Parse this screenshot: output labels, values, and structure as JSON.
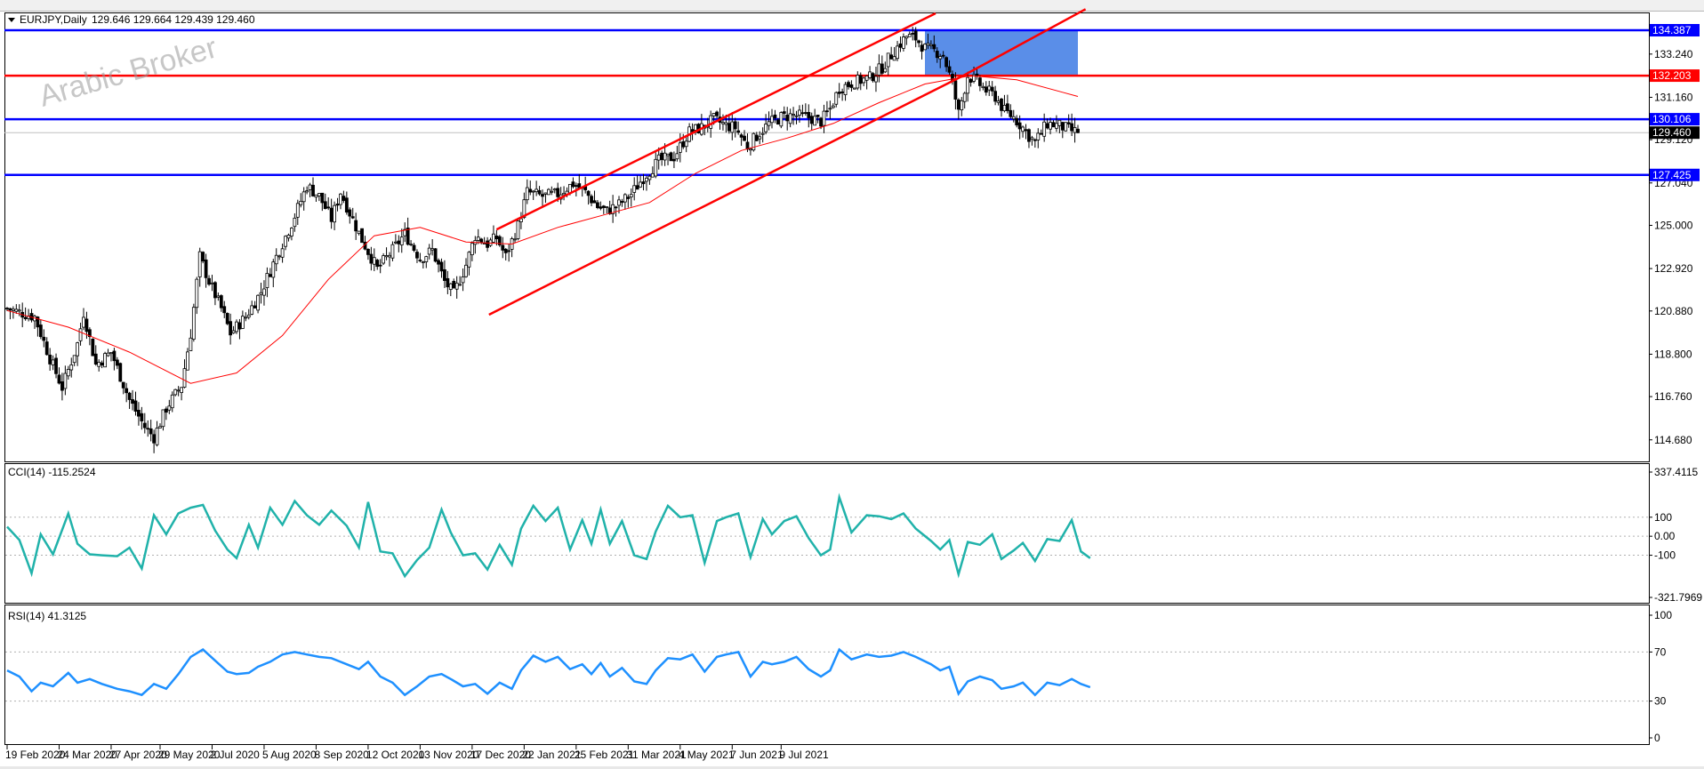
{
  "header": {
    "title": "EURJPY,Daily",
    "ohlc": "129.646 129.664 129.439 129.460"
  },
  "watermark": "Arabic Broker",
  "colors": {
    "bull_candle": "#ffffff",
    "bear_candle": "#000000",
    "ma": "#ff0000",
    "channel": "#ff0000",
    "support_resistance_blue": "#0000ff",
    "support_resistance_red": "#ff0000",
    "zone": "#5a8ee8",
    "cci_line": "#20b2aa",
    "rsi_line": "#1e90ff",
    "last_price_bg": "#000000"
  },
  "chart_data": [
    {
      "type": "candlestick",
      "symbol": "EURJPY",
      "timeframe": "Daily",
      "ylim": [
        113.6,
        135.2
      ],
      "yticks": [
        "133.240",
        "131.160",
        "129.120",
        "127.040",
        "125.000",
        "122.920",
        "120.880",
        "118.800",
        "116.760",
        "114.680"
      ],
      "xticks": [
        "19 Feb 2020",
        "24 Mar 2020",
        "27 Apr 2020",
        "29 May 2020",
        "2 Jul 2020",
        "5 Aug 2020",
        "8 Sep 2020",
        "12 Oct 2020",
        "13 Nov 2020",
        "17 Dec 2020",
        "22 Jan 2021",
        "25 Feb 2021",
        "31 Mar 2021",
        "4 May 2021",
        "7 Jun 2021",
        "9 Jul 2021"
      ],
      "close_path": [
        [
          0,
          121.0
        ],
        [
          18,
          120.6
        ],
        [
          28,
          118.6
        ],
        [
          36,
          117.2
        ],
        [
          46,
          119.3
        ],
        [
          50,
          120.8
        ],
        [
          58,
          118.3
        ],
        [
          68,
          118.9
        ],
        [
          80,
          116.6
        ],
        [
          90,
          115.3
        ],
        [
          96,
          114.8
        ],
        [
          104,
          116.2
        ],
        [
          114,
          117.3
        ],
        [
          120,
          119.8
        ],
        [
          126,
          123.5
        ],
        [
          132,
          122.3
        ],
        [
          140,
          121.0
        ],
        [
          146,
          119.8
        ],
        [
          156,
          120.6
        ],
        [
          166,
          121.8
        ],
        [
          176,
          123.5
        ],
        [
          186,
          125.1
        ],
        [
          196,
          126.9
        ],
        [
          204,
          126.4
        ],
        [
          212,
          125.3
        ],
        [
          218,
          126.6
        ],
        [
          224,
          125.6
        ],
        [
          232,
          124.3
        ],
        [
          242,
          122.9
        ],
        [
          252,
          123.8
        ],
        [
          260,
          124.6
        ],
        [
          270,
          123.4
        ],
        [
          278,
          123.8
        ],
        [
          286,
          122.3
        ],
        [
          292,
          121.7
        ],
        [
          300,
          123.1
        ],
        [
          306,
          124.5
        ],
        [
          314,
          124.1
        ],
        [
          320,
          124.4
        ],
        [
          326,
          123.5
        ],
        [
          334,
          125.0
        ],
        [
          340,
          126.6
        ],
        [
          350,
          126.4
        ],
        [
          360,
          126.5
        ],
        [
          370,
          127.0
        ],
        [
          378,
          126.6
        ],
        [
          386,
          125.9
        ],
        [
          392,
          125.7
        ],
        [
          400,
          126.0
        ],
        [
          408,
          126.5
        ],
        [
          416,
          127.3
        ],
        [
          426,
          128.1
        ],
        [
          436,
          128.3
        ],
        [
          446,
          129.5
        ],
        [
          454,
          129.7
        ],
        [
          462,
          130.1
        ],
        [
          470,
          129.8
        ],
        [
          476,
          129.7
        ],
        [
          484,
          128.8
        ],
        [
          490,
          129.3
        ],
        [
          498,
          129.9
        ],
        [
          506,
          130.2
        ],
        [
          514,
          130.3
        ],
        [
          524,
          130.2
        ],
        [
          532,
          130.0
        ],
        [
          538,
          130.6
        ],
        [
          544,
          131.6
        ],
        [
          554,
          131.9
        ],
        [
          564,
          132.1
        ],
        [
          572,
          132.6
        ],
        [
          580,
          133.4
        ],
        [
          588,
          134.1
        ],
        [
          594,
          134.0
        ],
        [
          600,
          133.5
        ],
        [
          606,
          133.4
        ],
        [
          612,
          133.2
        ],
        [
          618,
          131.8
        ],
        [
          622,
          130.4
        ],
        [
          628,
          132.2
        ],
        [
          634,
          131.9
        ],
        [
          640,
          131.5
        ],
        [
          646,
          131.2
        ],
        [
          652,
          130.5
        ],
        [
          658,
          130.2
        ],
        [
          664,
          129.7
        ],
        [
          668,
          129.3
        ],
        [
          672,
          129.0
        ],
        [
          680,
          129.9
        ],
        [
          688,
          129.8
        ],
        [
          694,
          129.6
        ],
        [
          700,
          129.46
        ]
      ],
      "moving_average": [
        [
          0,
          120.9
        ],
        [
          40,
          120.1
        ],
        [
          80,
          118.9
        ],
        [
          120,
          117.4
        ],
        [
          150,
          117.9
        ],
        [
          180,
          119.7
        ],
        [
          210,
          122.4
        ],
        [
          240,
          124.5
        ],
        [
          270,
          124.9
        ],
        [
          300,
          124.2
        ],
        [
          330,
          124.1
        ],
        [
          360,
          124.9
        ],
        [
          390,
          125.5
        ],
        [
          420,
          126.1
        ],
        [
          450,
          127.5
        ],
        [
          480,
          128.6
        ],
        [
          510,
          129.2
        ],
        [
          540,
          129.9
        ],
        [
          570,
          130.9
        ],
        [
          600,
          131.8
        ],
        [
          630,
          132.2
        ],
        [
          660,
          132.0
        ],
        [
          690,
          131.4
        ],
        [
          700,
          131.2
        ]
      ],
      "horizontal_lines": [
        {
          "price": 134.387,
          "label": "134.387",
          "color": "#0000ff"
        },
        {
          "price": 132.203,
          "label": "132.203",
          "color": "#ff0000"
        },
        {
          "price": 130.106,
          "label": "130.106",
          "color": "#0000ff"
        },
        {
          "price": 127.425,
          "label": "127.425",
          "color": "#0000ff"
        }
      ],
      "last_price": {
        "price": 129.46,
        "label": "129.460"
      },
      "channel": {
        "lower": [
          [
            315,
            120.7
          ],
          [
            625,
            132.2
          ],
          [
            705,
            135.4
          ]
        ],
        "upper": [
          [
            320,
            124.8
          ],
          [
            607,
            135.2
          ]
        ]
      },
      "zone": {
        "from_day": 600,
        "to_day": 700,
        "low": 132.203,
        "high": 134.387
      }
    },
    {
      "type": "line",
      "name": "CCI(14)",
      "label": "CCI(14) -115.2524",
      "ylim": [
        -321.7969,
        337.4115
      ],
      "ytick_labels": [
        "337.4115",
        "100",
        "0.00",
        "-100",
        "-321.7969"
      ],
      "levels": [
        100,
        0,
        -100
      ],
      "path": [
        [
          0,
          50
        ],
        [
          8,
          -20
        ],
        [
          16,
          -195
        ],
        [
          22,
          10
        ],
        [
          30,
          -95
        ],
        [
          40,
          120
        ],
        [
          46,
          -40
        ],
        [
          54,
          -95
        ],
        [
          62,
          -100
        ],
        [
          72,
          -105
        ],
        [
          80,
          -60
        ],
        [
          88,
          -170
        ],
        [
          96,
          110
        ],
        [
          104,
          10
        ],
        [
          112,
          120
        ],
        [
          120,
          150
        ],
        [
          128,
          165
        ],
        [
          136,
          30
        ],
        [
          144,
          -70
        ],
        [
          150,
          -115
        ],
        [
          158,
          60
        ],
        [
          164,
          -60
        ],
        [
          172,
          150
        ],
        [
          180,
          60
        ],
        [
          188,
          185
        ],
        [
          196,
          110
        ],
        [
          204,
          60
        ],
        [
          212,
          135
        ],
        [
          222,
          55
        ],
        [
          230,
          -60
        ],
        [
          236,
          180
        ],
        [
          244,
          -80
        ],
        [
          252,
          -90
        ],
        [
          260,
          -210
        ],
        [
          268,
          -125
        ],
        [
          276,
          -60
        ],
        [
          284,
          140
        ],
        [
          290,
          20
        ],
        [
          298,
          -100
        ],
        [
          306,
          -90
        ],
        [
          314,
          -175
        ],
        [
          322,
          -45
        ],
        [
          330,
          -150
        ],
        [
          336,
          40
        ],
        [
          344,
          160
        ],
        [
          352,
          80
        ],
        [
          360,
          150
        ],
        [
          368,
          -70
        ],
        [
          376,
          85
        ],
        [
          382,
          -40
        ],
        [
          388,
          140
        ],
        [
          394,
          -40
        ],
        [
          402,
          80
        ],
        [
          410,
          -100
        ],
        [
          418,
          -120
        ],
        [
          424,
          25
        ],
        [
          432,
          160
        ],
        [
          440,
          100
        ],
        [
          448,
          110
        ],
        [
          456,
          -140
        ],
        [
          464,
          80
        ],
        [
          470,
          100
        ],
        [
          478,
          120
        ],
        [
          486,
          -110
        ],
        [
          494,
          90
        ],
        [
          500,
          10
        ],
        [
          508,
          80
        ],
        [
          516,
          105
        ],
        [
          524,
          -10
        ],
        [
          532,
          -100
        ],
        [
          538,
          -70
        ],
        [
          544,
          205
        ],
        [
          552,
          20
        ],
        [
          562,
          110
        ],
        [
          570,
          105
        ],
        [
          578,
          90
        ],
        [
          586,
          120
        ],
        [
          594,
          40
        ],
        [
          604,
          -25
        ],
        [
          610,
          -70
        ],
        [
          616,
          -20
        ],
        [
          622,
          -200
        ],
        [
          628,
          -30
        ],
        [
          636,
          -45
        ],
        [
          644,
          10
        ],
        [
          650,
          -120
        ],
        [
          658,
          -75
        ],
        [
          664,
          -35
        ],
        [
          672,
          -130
        ],
        [
          680,
          -15
        ],
        [
          688,
          -25
        ],
        [
          696,
          85
        ],
        [
          702,
          -80
        ],
        [
          708,
          -115
        ]
      ]
    },
    {
      "type": "line",
      "name": "RSI(14)",
      "label": "RSI(14) 41.3125",
      "ylim": [
        0,
        100
      ],
      "ytick_labels": [
        "100",
        "70",
        "30",
        "0"
      ],
      "levels": [
        70,
        30
      ],
      "path": [
        [
          0,
          55
        ],
        [
          8,
          50
        ],
        [
          16,
          38
        ],
        [
          22,
          45
        ],
        [
          30,
          42
        ],
        [
          40,
          53
        ],
        [
          46,
          45
        ],
        [
          54,
          48
        ],
        [
          62,
          44
        ],
        [
          72,
          40
        ],
        [
          80,
          38
        ],
        [
          88,
          35
        ],
        [
          96,
          44
        ],
        [
          104,
          40
        ],
        [
          112,
          52
        ],
        [
          120,
          66
        ],
        [
          128,
          72
        ],
        [
          136,
          63
        ],
        [
          144,
          54
        ],
        [
          150,
          52
        ],
        [
          158,
          53
        ],
        [
          164,
          58
        ],
        [
          172,
          62
        ],
        [
          180,
          68
        ],
        [
          188,
          70
        ],
        [
          196,
          68
        ],
        [
          204,
          66
        ],
        [
          212,
          65
        ],
        [
          222,
          60
        ],
        [
          230,
          56
        ],
        [
          236,
          62
        ],
        [
          244,
          50
        ],
        [
          252,
          45
        ],
        [
          260,
          35
        ],
        [
          268,
          42
        ],
        [
          276,
          50
        ],
        [
          284,
          52
        ],
        [
          290,
          48
        ],
        [
          298,
          42
        ],
        [
          306,
          44
        ],
        [
          314,
          36
        ],
        [
          322,
          45
        ],
        [
          330,
          40
        ],
        [
          336,
          55
        ],
        [
          344,
          67
        ],
        [
          352,
          62
        ],
        [
          360,
          66
        ],
        [
          368,
          56
        ],
        [
          376,
          60
        ],
        [
          382,
          52
        ],
        [
          388,
          61
        ],
        [
          394,
          50
        ],
        [
          402,
          57
        ],
        [
          410,
          46
        ],
        [
          418,
          44
        ],
        [
          424,
          55
        ],
        [
          432,
          65
        ],
        [
          440,
          64
        ],
        [
          448,
          68
        ],
        [
          456,
          54
        ],
        [
          464,
          66
        ],
        [
          470,
          68
        ],
        [
          478,
          70
        ],
        [
          486,
          50
        ],
        [
          494,
          62
        ],
        [
          500,
          60
        ],
        [
          508,
          62
        ],
        [
          516,
          66
        ],
        [
          524,
          56
        ],
        [
          532,
          50
        ],
        [
          538,
          55
        ],
        [
          544,
          72
        ],
        [
          552,
          64
        ],
        [
          562,
          68
        ],
        [
          570,
          66
        ],
        [
          578,
          67
        ],
        [
          586,
          70
        ],
        [
          594,
          66
        ],
        [
          604,
          60
        ],
        [
          610,
          55
        ],
        [
          616,
          58
        ],
        [
          622,
          36
        ],
        [
          628,
          46
        ],
        [
          636,
          50
        ],
        [
          644,
          47
        ],
        [
          650,
          40
        ],
        [
          658,
          42
        ],
        [
          664,
          45
        ],
        [
          672,
          35
        ],
        [
          680,
          45
        ],
        [
          688,
          43
        ],
        [
          696,
          48
        ],
        [
          702,
          44
        ],
        [
          708,
          41.3
        ]
      ]
    }
  ]
}
